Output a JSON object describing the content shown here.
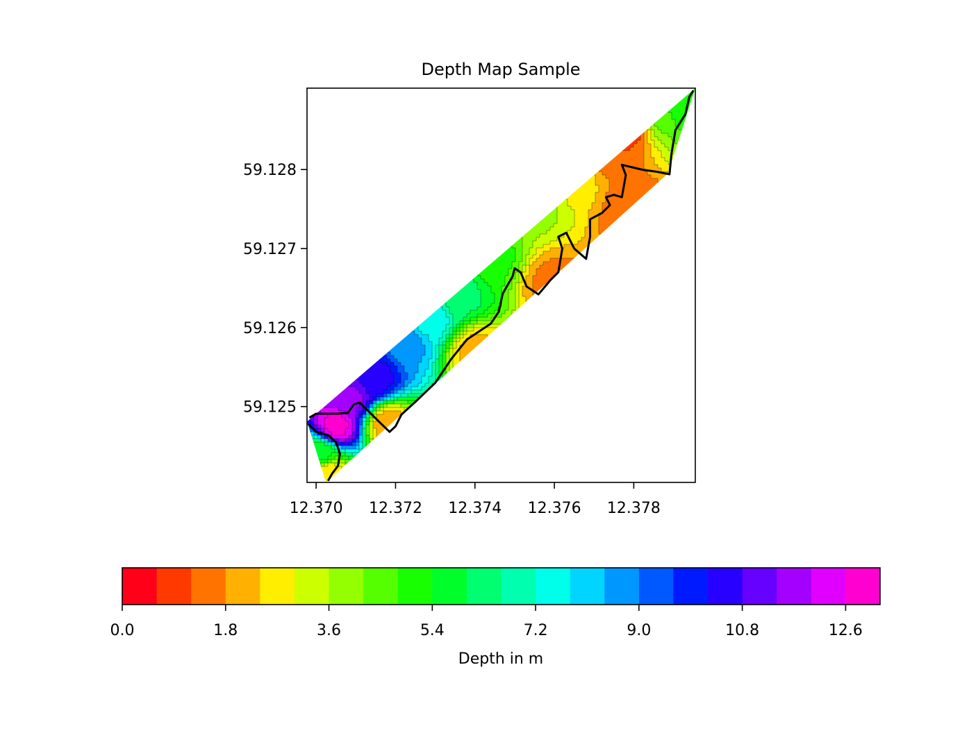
{
  "chart_data": {
    "type": "contour",
    "title": "Depth Map Sample",
    "xlabel": "",
    "ylabel": "",
    "xlim": [
      12.36977,
      12.37955
    ],
    "ylim": [
      59.12404,
      59.12903
    ],
    "x_ticks": [
      "12.370",
      "12.372",
      "12.374",
      "12.376",
      "12.378"
    ],
    "x_tick_values": [
      12.37,
      12.372,
      12.374,
      12.376,
      12.378
    ],
    "y_ticks": [
      "59.125",
      "59.126",
      "59.127",
      "59.128"
    ],
    "y_tick_values": [
      59.125,
      59.126,
      59.127,
      59.128
    ],
    "grid": false,
    "region": {
      "upper_edge": [
        [
          12.36977,
          59.12481
        ],
        [
          12.37955,
          59.12903
        ]
      ],
      "lower_edge": [
        [
          12.37025,
          59.12404
        ],
        [
          12.37886,
          59.12795
        ],
        [
          12.37955,
          59.12903
        ]
      ],
      "left_tip": [
        12.36977,
        59.12481
      ]
    },
    "depth_samples": [
      {
        "x": 12.3705,
        "y": 59.12475,
        "depth": 12.8
      },
      {
        "x": 12.3709,
        "y": 59.1251,
        "depth": 11.5
      },
      {
        "x": 12.3715,
        "y": 59.12535,
        "depth": 10.5
      },
      {
        "x": 12.3723,
        "y": 59.1258,
        "depth": 8.6
      },
      {
        "x": 12.3729,
        "y": 59.1261,
        "depth": 7.5
      },
      {
        "x": 12.3736,
        "y": 59.1264,
        "depth": 6.2
      },
      {
        "x": 12.3744,
        "y": 59.1269,
        "depth": 5.0
      },
      {
        "x": 12.3755,
        "y": 59.12755,
        "depth": 3.8
      },
      {
        "x": 12.3764,
        "y": 59.1279,
        "depth": 2.8
      },
      {
        "x": 12.3772,
        "y": 59.1283,
        "depth": 1.2
      },
      {
        "x": 12.3779,
        "y": 59.1286,
        "depth": 0.6
      },
      {
        "x": 12.3786,
        "y": 59.1287,
        "depth": 4.4
      },
      {
        "x": 12.3792,
        "y": 59.1288,
        "depth": 5.2
      },
      {
        "x": 12.3701,
        "y": 59.1244,
        "depth": 5.5
      },
      {
        "x": 12.3703,
        "y": 59.12415,
        "depth": 2.5
      },
      {
        "x": 12.3718,
        "y": 59.12478,
        "depth": 2.0
      },
      {
        "x": 12.374,
        "y": 59.1257,
        "depth": 2.2
      },
      {
        "x": 12.376,
        "y": 59.12655,
        "depth": 1.6
      },
      {
        "x": 12.378,
        "y": 59.12745,
        "depth": 1.4
      }
    ],
    "shoreline": [
      [
        12.36983,
        59.12486
      ],
      [
        12.37,
        59.12491
      ],
      [
        12.3705,
        59.12491
      ],
      [
        12.3708,
        59.12492
      ],
      [
        12.37095,
        59.12503
      ],
      [
        12.3711,
        59.12505
      ],
      [
        12.3713,
        59.12495
      ],
      [
        12.3716,
        59.1248
      ],
      [
        12.37185,
        59.12468
      ],
      [
        12.372,
        59.12475
      ],
      [
        12.37215,
        59.1249
      ],
      [
        12.3725,
        59.12506
      ],
      [
        12.373,
        59.1253
      ],
      [
        12.3734,
        59.1256
      ],
      [
        12.3738,
        59.12585
      ],
      [
        12.3741,
        59.12595
      ],
      [
        12.3744,
        59.12605
      ],
      [
        12.3746,
        59.1262
      ],
      [
        12.3747,
        59.12643
      ],
      [
        12.37495,
        59.12665
      ],
      [
        12.375,
        59.12675
      ],
      [
        12.37515,
        59.1267
      ],
      [
        12.3753,
        59.12652
      ],
      [
        12.3756,
        59.12642
      ],
      [
        12.3759,
        59.1266
      ],
      [
        12.3761,
        59.1267
      ],
      [
        12.3762,
        59.127
      ],
      [
        12.3761,
        59.12715
      ],
      [
        12.3763,
        59.1272
      ],
      [
        12.3765,
        59.127
      ],
      [
        12.3768,
        59.12687
      ],
      [
        12.3769,
        59.12715
      ],
      [
        12.3769,
        59.12737
      ],
      [
        12.3772,
        59.12745
      ],
      [
        12.3774,
        59.12755
      ],
      [
        12.3773,
        59.12765
      ],
      [
        12.3775,
        59.12768
      ],
      [
        12.3777,
        59.12765
      ],
      [
        12.3778,
        59.12793
      ],
      [
        12.3777,
        59.12806
      ],
      [
        12.3782,
        59.128
      ],
      [
        12.3786,
        59.12797
      ],
      [
        12.3789,
        59.12794
      ],
      [
        12.37895,
        59.1282
      ],
      [
        12.37905,
        59.1285
      ],
      [
        12.3793,
        59.1287
      ],
      [
        12.3794,
        59.12892
      ],
      [
        12.3795,
        59.129
      ]
    ],
    "shoreline_lower": [
      [
        12.3698,
        59.12478
      ],
      [
        12.37,
        59.12468
      ],
      [
        12.3703,
        59.12464
      ],
      [
        12.3705,
        59.12455
      ],
      [
        12.3706,
        59.1244
      ],
      [
        12.37055,
        59.12425
      ],
      [
        12.3704,
        59.12415
      ],
      [
        12.3703,
        59.12406
      ]
    ],
    "colorbar": {
      "label": "Depth in m",
      "orientation": "horizontal",
      "min": 0.0,
      "max": 13.2,
      "step": 0.6,
      "tick_labels": [
        "0.0",
        "1.8",
        "3.6",
        "5.4",
        "7.2",
        "9.0",
        "10.8",
        "12.6"
      ],
      "tick_values": [
        0.0,
        1.8,
        3.6,
        5.4,
        7.2,
        9.0,
        10.8,
        12.6
      ],
      "colors": [
        "#ff0018",
        "#ff3a00",
        "#ff7400",
        "#ffb000",
        "#ffee00",
        "#ccff00",
        "#93ff00",
        "#55ff00",
        "#17ff00",
        "#00ff2a",
        "#00ff70",
        "#00ffaf",
        "#00ffea",
        "#00d5ff",
        "#0097ff",
        "#0058ff",
        "#001aff",
        "#2800ff",
        "#6600ff",
        "#a300ff",
        "#e100ff",
        "#ff00d0"
      ]
    }
  }
}
